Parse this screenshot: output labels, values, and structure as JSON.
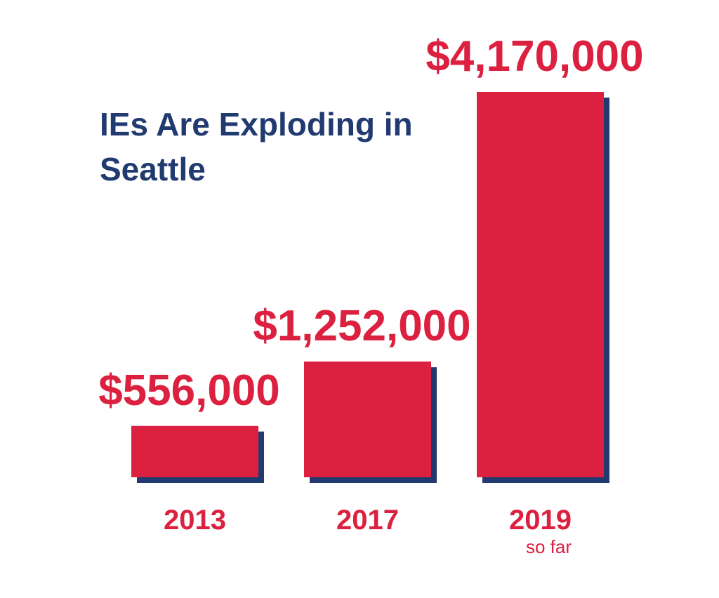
{
  "chart_data": {
    "type": "bar",
    "title": "IEs Are Exploding in Seattle",
    "categories": [
      "2013",
      "2017",
      "2019"
    ],
    "values": [
      556000,
      1252000,
      4170000
    ],
    "value_labels": [
      "$556,000",
      "$1,252,000",
      "$4,170,000"
    ],
    "annotations": [
      {
        "category": "2019",
        "text": "so far"
      }
    ],
    "color": "#dc203f",
    "shadow_color": "#213a70",
    "title_color": "#213a70"
  }
}
